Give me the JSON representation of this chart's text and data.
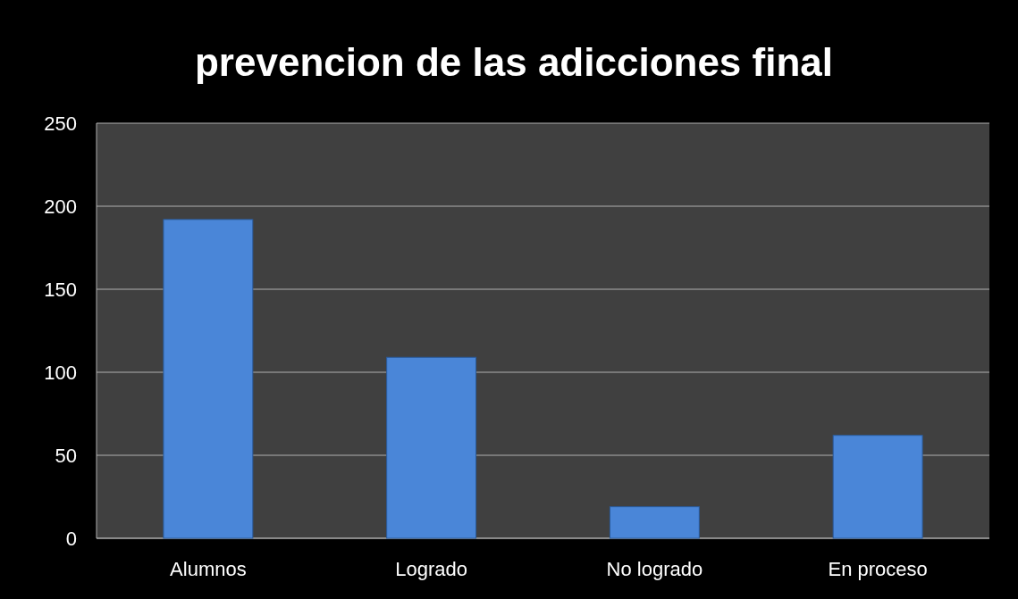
{
  "chart_data": {
    "type": "bar",
    "title": "prevencion de las adicciones final",
    "categories": [
      "Alumnos",
      "Logrado",
      "No logrado",
      "En proceso"
    ],
    "values": [
      192,
      109,
      19,
      62
    ],
    "color": "#4a86d8",
    "ylim": [
      0,
      250
    ],
    "yticks": [
      0,
      50,
      100,
      150,
      200,
      250
    ],
    "grid": "y"
  }
}
